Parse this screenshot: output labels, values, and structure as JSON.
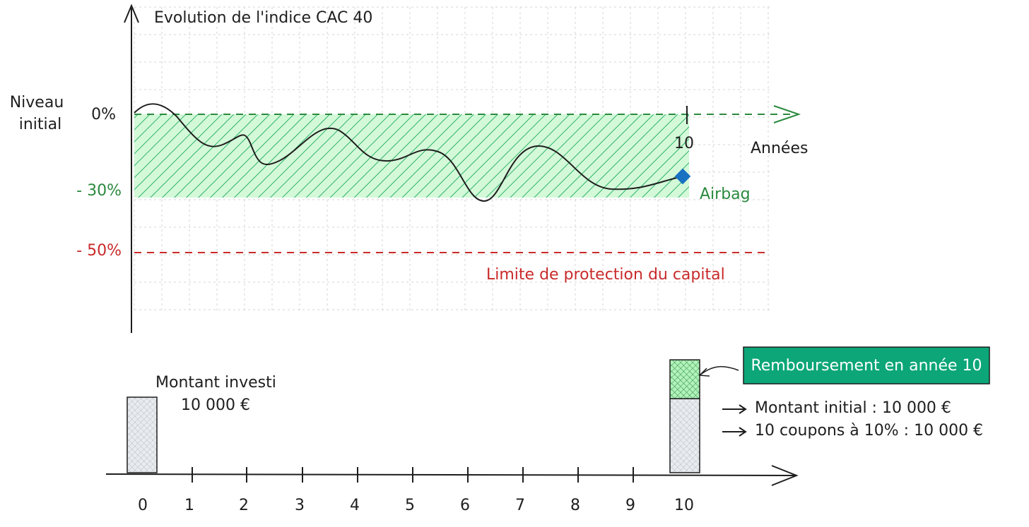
{
  "top_chart": {
    "title": "Evolution de l'indice CAC 40",
    "y_axis_label": [
      "Niveau",
      "initial"
    ],
    "levels": [
      "0%",
      "- 30%",
      "- 50%"
    ],
    "x_tick": "10",
    "x_axis_label": "Années",
    "airbag_label": "Airbag",
    "protection_label": "Limite de protection du capital"
  },
  "bottom_chart": {
    "invested_label": [
      "Montant investi",
      "10 000 €"
    ],
    "repayment_title": "Remboursement en année 10",
    "repayment_items": [
      "Montant initial : 10 000 €",
      "10 coupons à 10% : 10 000 €"
    ],
    "timeline_labels": [
      "0",
      "1",
      "2",
      "3",
      "4",
      "5",
      "6",
      "7",
      "8",
      "9",
      "10"
    ]
  }
}
